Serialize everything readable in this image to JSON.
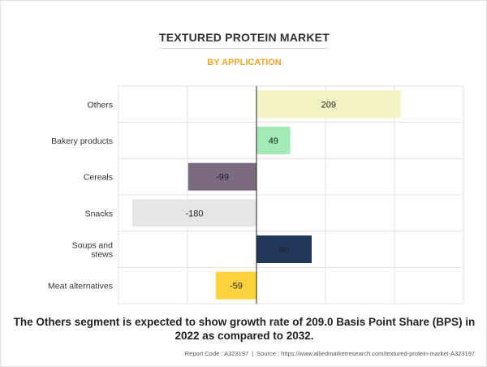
{
  "header": {
    "title": "TEXTURED PROTEIN MARKET",
    "subtitle": "BY APPLICATION"
  },
  "colors": {
    "subtitle": "#f5a623",
    "grid": "#e2e2e2",
    "zero_line": "#222222"
  },
  "chart_data": {
    "type": "bar",
    "orientation": "horizontal",
    "title": "TEXTURED PROTEIN MARKET",
    "subtitle": "BY APPLICATION",
    "categories": [
      "Others",
      "Bakery products",
      "Cereals",
      "Snacks",
      "Soups and stews",
      "Meat alternatives"
    ],
    "category_lines": [
      [
        "Others"
      ],
      [
        "Bakery products"
      ],
      [
        "Cereals"
      ],
      [
        "Snacks"
      ],
      [
        "Soups and",
        "stews"
      ],
      [
        "Meat alternatives"
      ]
    ],
    "values": [
      209,
      49,
      -99,
      -180,
      80,
      -59
    ],
    "data_labels": [
      "209",
      "49",
      "-99",
      "-180",
      "80",
      "-59"
    ],
    "bar_colors": [
      "#f4f4c4",
      "#a4eab9",
      "#7b6a80",
      "#e6e6e6",
      "#22375c",
      "#fdd33d"
    ],
    "xlim": [
      -200,
      300
    ],
    "grid": true,
    "tick_labels_shown": false
  },
  "footer": {
    "report_code": "Report Code : A323197",
    "separator": "|",
    "source": "Source : https://www.alliedmarketresearch.com/textured-protein-market-A323197"
  },
  "caption": "The Others segment is expected to show growth rate of 209.0 Basis Point Share (BPS) in 2022 as compared to 2032."
}
